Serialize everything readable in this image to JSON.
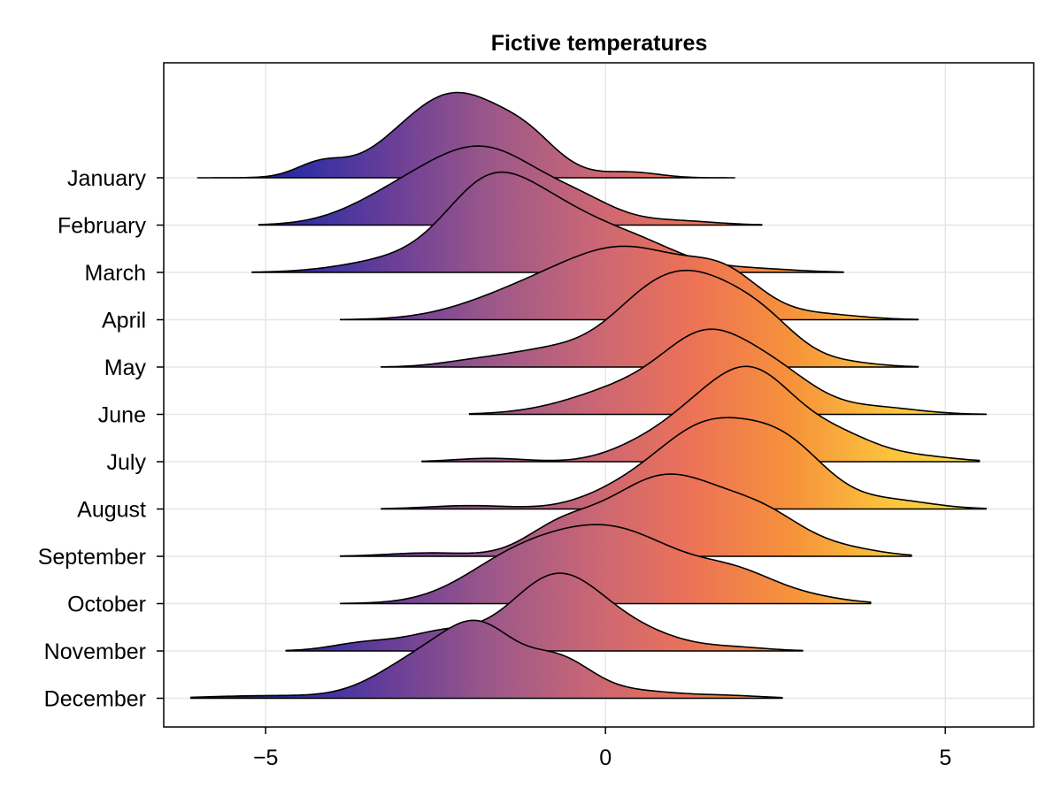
{
  "chart_data": {
    "type": "ridgeline",
    "title": "Fictive temperatures",
    "xlabel": "",
    "ylabel": "",
    "xlim": [
      -6.5,
      6.3
    ],
    "xticks": [
      -5,
      0,
      5
    ],
    "xtick_labels": [
      "−5",
      "0",
      "5"
    ],
    "grid": true,
    "colormap": [
      "#0d1a35",
      "#2e2ea4",
      "#6b3f98",
      "#9d5889",
      "#c96675",
      "#ec7257",
      "#f6913b",
      "#fbc23d",
      "#f4e44a"
    ],
    "color_range": [
      -6.0,
      5.6
    ],
    "series": [
      {
        "name": "January",
        "range": [
          -6.0,
          1.9
        ],
        "peaks": [
          [
            -4.2,
            0.15,
            0.35
          ],
          [
            -2.2,
            1.0,
            0.85
          ],
          [
            -1.1,
            0.18,
            0.4
          ],
          [
            0.4,
            0.06,
            0.4
          ]
        ]
      },
      {
        "name": "February",
        "range": [
          -5.1,
          2.3
        ],
        "peaks": [
          [
            -3.2,
            0.2,
            0.7
          ],
          [
            -1.8,
            0.9,
            0.9
          ],
          [
            -0.3,
            0.15,
            0.5
          ],
          [
            1.0,
            0.05,
            0.6
          ]
        ]
      },
      {
        "name": "March",
        "range": [
          -5.2,
          3.5
        ],
        "peaks": [
          [
            -3.0,
            0.15,
            0.8
          ],
          [
            -1.8,
            0.6,
            0.6
          ],
          [
            -0.9,
            0.78,
            0.9
          ],
          [
            0.6,
            0.2,
            0.6
          ],
          [
            2.0,
            0.05,
            0.7
          ]
        ]
      },
      {
        "name": "April",
        "range": [
          -3.9,
          4.6
        ],
        "peaks": [
          [
            -1.5,
            0.15,
            0.8
          ],
          [
            0.3,
            0.85,
            1.1
          ],
          [
            1.8,
            0.3,
            0.5
          ],
          [
            3.2,
            0.05,
            0.6
          ]
        ]
      },
      {
        "name": "May",
        "range": [
          -3.3,
          4.6
        ],
        "peaks": [
          [
            -2.0,
            0.05,
            0.5
          ],
          [
            -0.8,
            0.2,
            0.7
          ],
          [
            0.5,
            0.4,
            0.6
          ],
          [
            1.4,
            0.95,
            0.75
          ],
          [
            2.4,
            0.28,
            0.5
          ],
          [
            3.5,
            0.05,
            0.5
          ]
        ]
      },
      {
        "name": "June",
        "range": [
          -2.0,
          5.6
        ],
        "peaks": [
          [
            0.5,
            0.35,
            0.9
          ],
          [
            1.5,
            0.7,
            0.6
          ],
          [
            2.5,
            0.45,
            0.6
          ],
          [
            4.0,
            0.08,
            0.6
          ]
        ]
      },
      {
        "name": "July",
        "range": [
          -2.7,
          5.5
        ],
        "peaks": [
          [
            -1.7,
            0.04,
            0.5
          ],
          [
            0.4,
            0.1,
            0.5
          ],
          [
            1.3,
            0.45,
            0.6
          ],
          [
            2.2,
            0.92,
            0.6
          ],
          [
            3.4,
            0.3,
            0.6
          ],
          [
            4.7,
            0.05,
            0.5
          ]
        ]
      },
      {
        "name": "August",
        "range": [
          -3.3,
          5.6
        ],
        "peaks": [
          [
            -2.0,
            0.04,
            0.6
          ],
          [
            0.2,
            0.15,
            0.6
          ],
          [
            1.5,
            0.95,
            0.75
          ],
          [
            2.7,
            0.6,
            0.6
          ],
          [
            4.2,
            0.1,
            0.6
          ]
        ]
      },
      {
        "name": "September",
        "range": [
          -3.9,
          4.5
        ],
        "peaks": [
          [
            -2.6,
            0.04,
            0.6
          ],
          [
            -0.7,
            0.25,
            0.5
          ],
          [
            0.9,
            0.95,
            0.9
          ],
          [
            2.4,
            0.35,
            0.6
          ],
          [
            3.6,
            0.07,
            0.5
          ]
        ]
      },
      {
        "name": "October",
        "range": [
          -3.9,
          3.9
        ],
        "peaks": [
          [
            -1.5,
            0.25,
            0.7
          ],
          [
            0.0,
            0.9,
            1.1
          ],
          [
            2.0,
            0.25,
            0.6
          ],
          [
            3.1,
            0.05,
            0.5
          ]
        ]
      },
      {
        "name": "November",
        "range": [
          -4.7,
          2.9
        ],
        "peaks": [
          [
            -3.5,
            0.1,
            0.5
          ],
          [
            -2.4,
            0.2,
            0.5
          ],
          [
            -0.7,
            0.9,
            0.7
          ],
          [
            0.6,
            0.15,
            0.6
          ],
          [
            1.9,
            0.04,
            0.5
          ]
        ]
      },
      {
        "name": "December",
        "range": [
          -6.1,
          2.6
        ],
        "peaks": [
          [
            -5.0,
            0.03,
            0.8
          ],
          [
            -2.6,
            0.5,
            0.7
          ],
          [
            -1.8,
            0.6,
            0.5
          ],
          [
            -0.7,
            0.45,
            0.5
          ],
          [
            0.5,
            0.08,
            0.6
          ],
          [
            1.8,
            0.03,
            0.5
          ]
        ]
      }
    ]
  }
}
